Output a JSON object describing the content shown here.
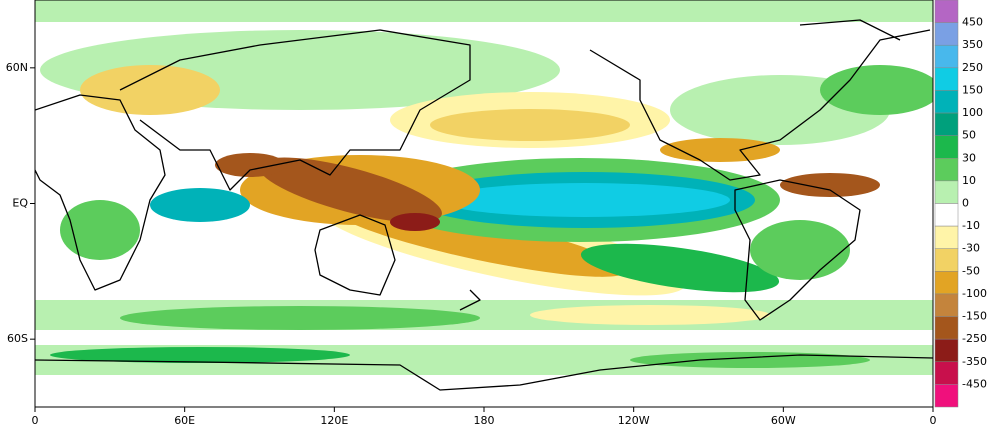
{
  "map": {
    "x_labels": [
      "0",
      "60E",
      "120E",
      "180",
      "120W",
      "60W",
      "0"
    ],
    "y_labels": [
      "60N",
      "EQ",
      "60S"
    ],
    "colorbar": {
      "labels": [
        450,
        350,
        250,
        150,
        100,
        50,
        30,
        10,
        0,
        -10,
        -30,
        -50,
        -100,
        -150,
        -250,
        -350,
        -450
      ],
      "colors": [
        "#b466c4",
        "#7aa0e4",
        "#48b8ec",
        "#10cce4",
        "#00b2b8",
        "#00a07c",
        "#1cb84c",
        "#5ccc5c",
        "#b8f0b0",
        "#ffffff",
        "#fff4a8",
        "#f2d264",
        "#e2a424",
        "#c4843c",
        "#a4561c",
        "#8c1c18",
        "#c8104c",
        "#f0107c"
      ]
    }
  }
}
